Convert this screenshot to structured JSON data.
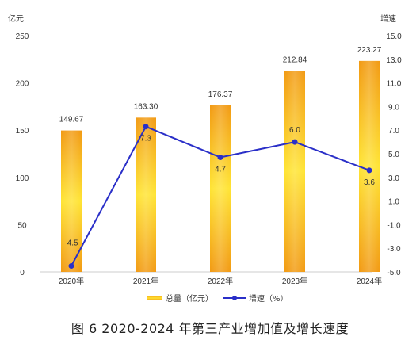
{
  "caption": "图 6   2020-2024 年第三产业增加值及增长速度",
  "chart_data": {
    "type": "bar+line",
    "categories": [
      "2020年",
      "2021年",
      "2022年",
      "2023年",
      "2024年"
    ],
    "left_axis": {
      "unit": "亿元",
      "ylim": [
        0,
        250
      ],
      "ticks": [
        0,
        50,
        100,
        150,
        200,
        250
      ],
      "tick_labels": [
        "0",
        "50",
        "100",
        "150",
        "200",
        "250"
      ]
    },
    "right_axis": {
      "unit": "增速",
      "ylim": [
        -5,
        15
      ],
      "ticks": [
        -5,
        -3,
        -1,
        1,
        3,
        5,
        7,
        9,
        11,
        13,
        15
      ],
      "tick_labels": [
        "-5.0",
        "-3.0",
        "-1.0",
        "1.0",
        "3.0",
        "5.0",
        "7.0",
        "9.0",
        "11.0",
        "13.0",
        "15.0"
      ]
    },
    "series": [
      {
        "name": "总量（亿元）",
        "type": "bar",
        "axis": "left",
        "values": [
          149.67,
          163.3,
          176.37,
          212.84,
          223.27
        ],
        "labels": [
          "149.67",
          "163.30",
          "176.37",
          "212.84",
          "223.27"
        ]
      },
      {
        "name": "增速（%）",
        "type": "line",
        "axis": "right",
        "values": [
          -4.5,
          7.3,
          4.7,
          6.0,
          3.6
        ],
        "labels": [
          "-4.5",
          "7.3",
          "4.7",
          "6.0",
          "3.6"
        ]
      }
    ],
    "legend_position": "bottom",
    "grid": false,
    "colors": {
      "bar_top": "#f29a12",
      "bar_mid": "#ffe433",
      "line": "#2a2fc8"
    }
  }
}
